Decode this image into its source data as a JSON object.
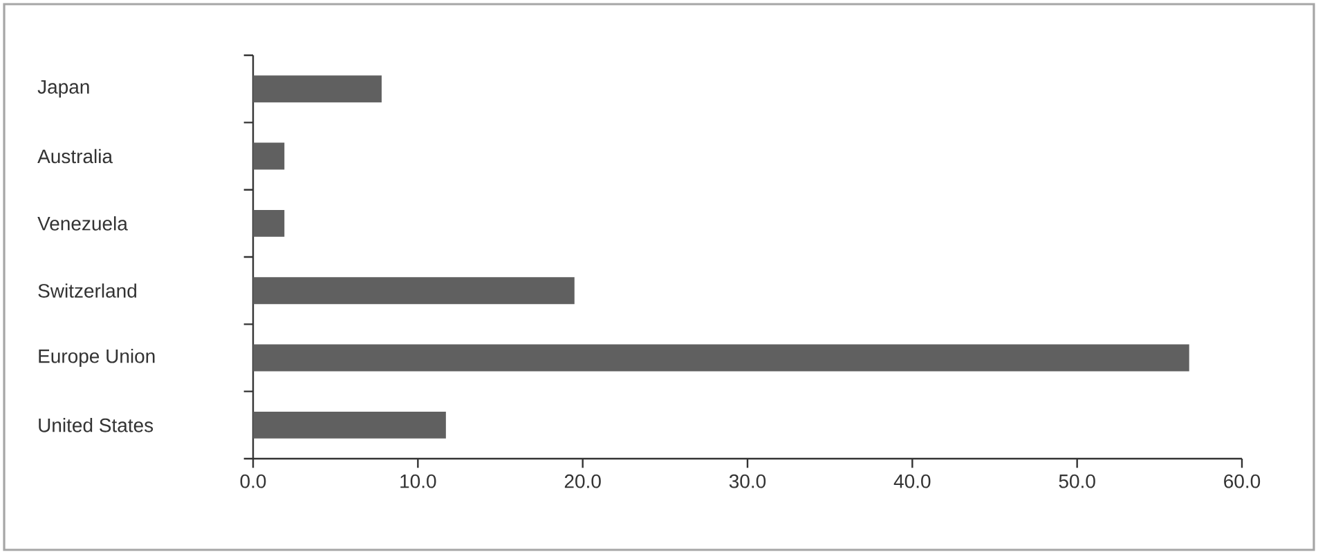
{
  "chart_data": {
    "type": "bar",
    "orientation": "horizontal",
    "categories": [
      "Japan",
      "Australia",
      "Venezuela",
      "Switzerland",
      "Europe Union",
      "United States"
    ],
    "values": [
      7.8,
      1.9,
      1.9,
      19.5,
      56.8,
      11.7
    ],
    "color": "#606060",
    "xlim": [
      0,
      60
    ],
    "xticks": [
      {
        "value": 0,
        "label": "0.0"
      },
      {
        "value": 10,
        "label": "10.0"
      },
      {
        "value": 20,
        "label": "20.0"
      },
      {
        "value": 30,
        "label": "30.0"
      },
      {
        "value": 40,
        "label": "40.0"
      },
      {
        "value": 50,
        "label": "50.0"
      },
      {
        "value": 60,
        "label": "60.0"
      }
    ]
  }
}
